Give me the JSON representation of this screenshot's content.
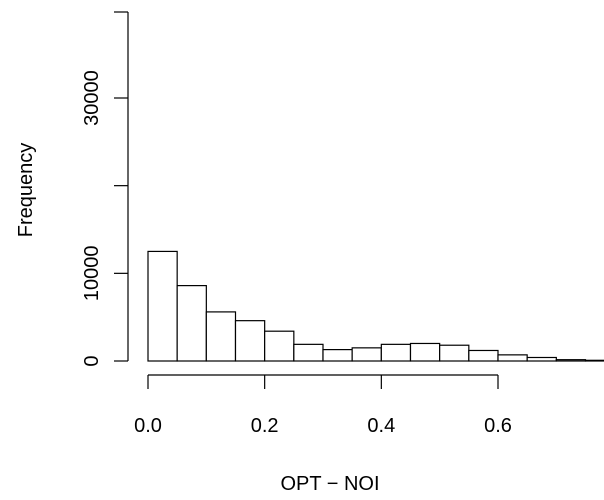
{
  "chart_data": {
    "type": "bar",
    "title": "",
    "xlabel": "OPT − NOI",
    "ylabel": "Frequency",
    "bin_edges": [
      0.0,
      0.05,
      0.1,
      0.15,
      0.2,
      0.25,
      0.3,
      0.35,
      0.4,
      0.45,
      0.5,
      0.55,
      0.6,
      0.65,
      0.7,
      0.75,
      0.8
    ],
    "values": [
      12500,
      8600,
      5600,
      4600,
      3400,
      1900,
      1300,
      1500,
      1900,
      2000,
      1800,
      1200,
      700,
      400,
      150,
      80
    ],
    "xlim": [
      0.0,
      0.8
    ],
    "ylim": [
      0,
      37000
    ],
    "x_ticks": [
      {
        "value": 0.0,
        "label": "0.0"
      },
      {
        "value": 0.2,
        "label": "0.2"
      },
      {
        "value": 0.4,
        "label": "0.4"
      },
      {
        "value": 0.6,
        "label": "0.6"
      }
    ],
    "y_ticks": [
      {
        "value": 0,
        "label": "0"
      },
      {
        "value": 10000,
        "label": "10000"
      },
      {
        "value": 20000,
        "label": ""
      },
      {
        "value": 30000,
        "label": "30000"
      }
    ],
    "grid": false,
    "bar_fill": "#ffffff",
    "bar_stroke": "#000000"
  }
}
